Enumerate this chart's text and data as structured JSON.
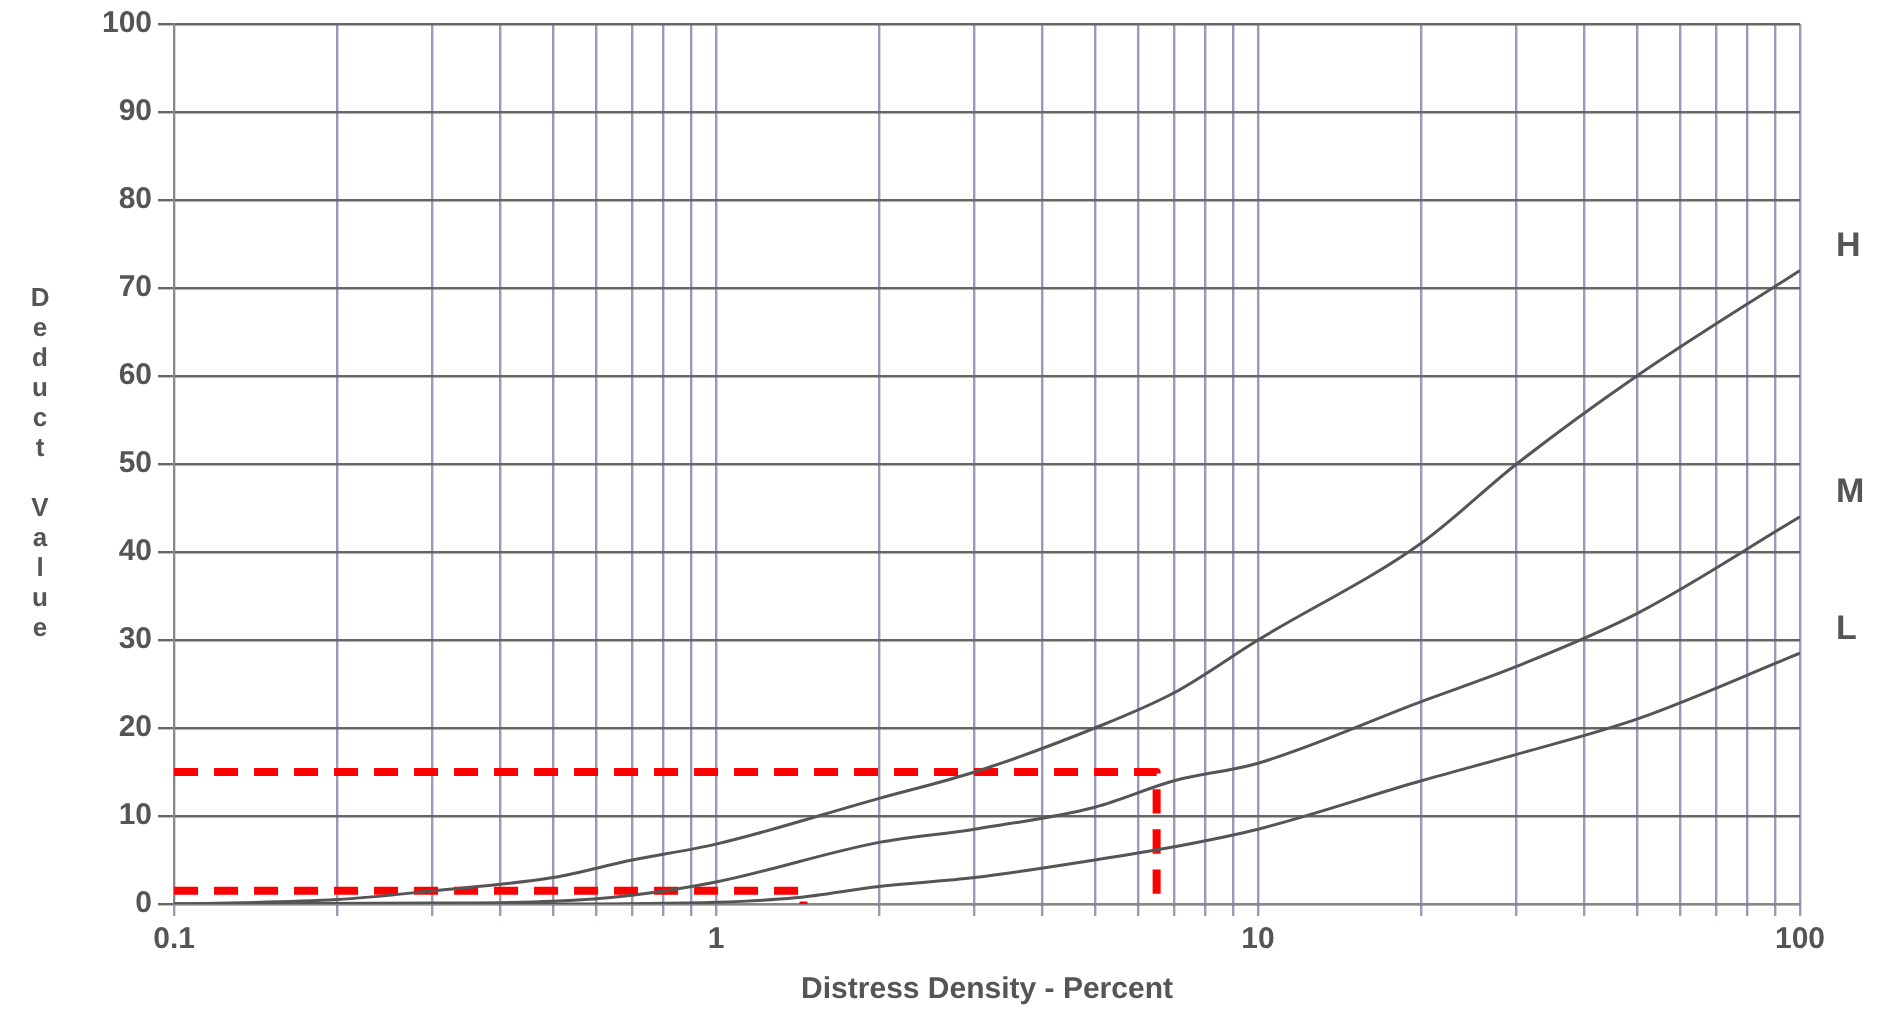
{
  "chart_data": {
    "type": "line",
    "xlabel": "Distress Density - Percent",
    "ylabel": "Deduct Value",
    "log": "x",
    "grid": true,
    "legend": false,
    "marker": "none",
    "xlim": [
      0.1,
      100
    ],
    "ylim": [
      0,
      100
    ],
    "xticks": [
      0.1,
      {
        "value": 0.2,
        "label": null
      },
      {
        "value": 0.3,
        "label": null
      },
      {
        "value": 0.4,
        "label": null
      },
      {
        "value": 0.5,
        "label": null
      },
      {
        "value": 0.6,
        "label": null
      },
      {
        "value": 0.7,
        "label": null
      },
      {
        "value": 0.8,
        "label": null
      },
      {
        "value": 0.9,
        "label": null
      },
      1,
      {
        "value": 2,
        "label": null
      },
      {
        "value": 3,
        "label": null
      },
      {
        "value": 4,
        "label": null
      },
      {
        "value": 5,
        "label": null
      },
      {
        "value": 6,
        "label": null
      },
      {
        "value": 7,
        "label": null
      },
      {
        "value": 8,
        "label": null
      },
      {
        "value": 9,
        "label": null
      },
      10,
      {
        "value": 20,
        "label": null
      },
      {
        "value": 30,
        "label": null
      },
      {
        "value": 40,
        "label": null
      },
      {
        "value": 50,
        "label": null
      },
      {
        "value": 60,
        "label": null
      },
      {
        "value": 70,
        "label": null
      },
      {
        "value": 80,
        "label": null
      },
      {
        "value": 90,
        "label": null
      },
      100
    ],
    "yticks": [
      0,
      10,
      20,
      30,
      40,
      50,
      60,
      70,
      80,
      90,
      100
    ],
    "series": [
      {
        "name": "H",
        "color": "#555555",
        "x": [
          0.1,
          0.2,
          0.3,
          0.5,
          0.7,
          1,
          2,
          3,
          5,
          7,
          10,
          20,
          30,
          50,
          100
        ],
        "values": [
          0,
          0.5,
          1.5,
          3,
          5,
          6.8,
          12,
          15,
          20,
          24,
          30,
          41,
          50,
          60,
          72
        ]
      },
      {
        "name": "M",
        "color": "#555555",
        "x": [
          0.1,
          0.3,
          0.5,
          0.7,
          1,
          2,
          3,
          5,
          7,
          10,
          20,
          30,
          50,
          100
        ],
        "values": [
          0,
          0.1,
          0.3,
          1,
          2.5,
          7,
          8.5,
          11,
          14,
          16,
          23,
          27,
          33,
          44
        ]
      },
      {
        "name": "L",
        "color": "#555555",
        "x": [
          0.1,
          0.5,
          1,
          1.4,
          2,
          3,
          5,
          7,
          10,
          20,
          30,
          50,
          100
        ],
        "values": [
          0,
          0,
          0.2,
          0.7,
          2,
          3,
          5,
          6.5,
          8.5,
          14,
          17,
          21,
          28.5
        ]
      },
      {
        "color": "#ff0000",
        "line_style": "dashed",
        "x": [
          0.1,
          6.5,
          6.5
        ],
        "values": [
          15,
          15,
          0
        ]
      },
      {
        "color": "#ff0000",
        "line_style": "dashed",
        "x": [
          0.1,
          1.45,
          1.45
        ],
        "values": [
          1.5,
          1.5,
          0
        ]
      }
    ]
  }
}
